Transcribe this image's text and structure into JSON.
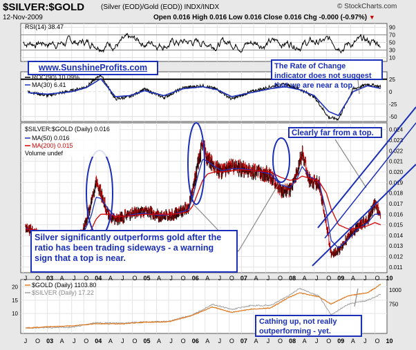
{
  "header": {
    "title": "$SILVER:$GOLD",
    "subtitle": "(Silver (EOD)/Gold (EOD))  INDX/INDX",
    "watermark": "© StockCharts.com",
    "date": "12-Nov-2009",
    "quote": "Open 0.016  High 0.016  Low 0.016  Close 0.016  Chg -0.000 (-0.97%)"
  },
  "site_label": "www.SunshineProfits.com",
  "annotations": {
    "roc_note": "The Rate of Change indicator does not suggest that we are near a top.",
    "top_note": "Clearly far from a top.",
    "silver_note": "Silver significantly outperforms gold after the ratio has been trading sideways -  a warning sign that a top is near.",
    "catch_note": "Cathing up, not really outperforming - yet."
  },
  "chart_data": [
    {
      "type": "line",
      "panel": "rsi",
      "legend": [
        "RSI(14) 38.47"
      ],
      "y_ticks": [
        10,
        30,
        50,
        70,
        90
      ],
      "ylim": [
        0,
        100
      ],
      "reference_lines": [
        30,
        70
      ]
    },
    {
      "type": "line",
      "panel": "roc",
      "legend": [
        "ROC(90) 10.09%",
        "MA(30) 6.41"
      ],
      "y_ticks": [
        -50,
        -25,
        0,
        25
      ],
      "ylim": [
        -60,
        40
      ],
      "reference_lines": [
        25
      ],
      "x": [
        2002.6,
        2003.0,
        2003.5,
        2003.8,
        2004.1,
        2004.4,
        2004.7,
        2005.0,
        2005.4,
        2005.8,
        2006.2,
        2006.5,
        2006.8,
        2007.2,
        2007.6,
        2007.9,
        2008.2,
        2008.5,
        2008.8,
        2009.0,
        2009.3,
        2009.6,
        2009.87
      ],
      "series": [
        {
          "name": "ROC(90) 10.09%",
          "values": [
            0,
            -8,
            2,
            10,
            34,
            -15,
            -10,
            5,
            -12,
            8,
            12,
            5,
            -15,
            0,
            10,
            15,
            5,
            -10,
            -52,
            -55,
            5,
            15,
            10.09
          ]
        },
        {
          "name": "MA(30) 6.41",
          "values": [
            -2,
            -5,
            0,
            8,
            26,
            -10,
            -8,
            2,
            -8,
            6,
            10,
            4,
            -10,
            -2,
            6,
            10,
            4,
            -8,
            -40,
            -48,
            0,
            12,
            6.41
          ]
        }
      ]
    },
    {
      "type": "line",
      "panel": "price",
      "legend": [
        "$SILVER:$GOLD (Daily) 0.016",
        "MA(50) 0.016",
        "MA(200) 0.015",
        "Volume undef"
      ],
      "y_ticks": [
        0.011,
        0.012,
        0.013,
        0.014,
        0.015,
        0.016,
        0.017,
        0.018,
        0.019,
        0.02,
        0.021,
        0.022,
        0.023,
        0.024
      ],
      "ylim": [
        0.0106,
        0.0245
      ],
      "x_ticks": [
        "J",
        "O",
        "03",
        "A",
        "J",
        "O",
        "04",
        "A",
        "J",
        "O",
        "05",
        "A",
        "J",
        "O",
        "06",
        "A",
        "J",
        "O",
        "07",
        "A",
        "J",
        "O",
        "08",
        "A",
        "J",
        "O",
        "09",
        "A",
        "J",
        "O",
        "10",
        "A"
      ],
      "x": [
        2002.55,
        2002.8,
        2003.0,
        2003.2,
        2003.45,
        2003.7,
        2003.9,
        2004.0,
        2004.1,
        2004.25,
        2004.4,
        2004.6,
        2004.8,
        2005.0,
        2005.3,
        2005.6,
        2005.9,
        2006.0,
        2006.1,
        2006.2,
        2006.3,
        2006.45,
        2006.6,
        2006.8,
        2007.0,
        2007.3,
        2007.6,
        2007.8,
        2008.0,
        2008.15,
        2008.25,
        2008.4,
        2008.6,
        2008.75,
        2008.85,
        2009.0,
        2009.2,
        2009.4,
        2009.6,
        2009.75,
        2009.87
      ],
      "series": [
        {
          "name": "$SILVER:$GOLD (Daily) 0.016",
          "values": [
            0.0148,
            0.014,
            0.0131,
            0.0127,
            0.0134,
            0.014,
            0.017,
            0.019,
            0.018,
            0.016,
            0.0155,
            0.0158,
            0.0162,
            0.0163,
            0.0158,
            0.016,
            0.0166,
            0.0184,
            0.0208,
            0.0225,
            0.0212,
            0.0205,
            0.02,
            0.0205,
            0.0203,
            0.02,
            0.0197,
            0.0182,
            0.0183,
            0.02,
            0.0218,
            0.0192,
            0.0189,
            0.015,
            0.0122,
            0.0125,
            0.014,
            0.0148,
            0.0155,
            0.017,
            0.016
          ]
        },
        {
          "name": "MA(50) 0.016",
          "values": [
            0.0147,
            0.0142,
            0.0135,
            0.013,
            0.0132,
            0.0138,
            0.0158,
            0.0176,
            0.0175,
            0.0165,
            0.0158,
            0.0158,
            0.016,
            0.0161,
            0.0159,
            0.016,
            0.0164,
            0.0176,
            0.0196,
            0.0212,
            0.021,
            0.0205,
            0.0201,
            0.0203,
            0.0203,
            0.0201,
            0.0198,
            0.0188,
            0.0185,
            0.0194,
            0.0205,
            0.0196,
            0.019,
            0.0162,
            0.0135,
            0.0128,
            0.0136,
            0.0146,
            0.0152,
            0.016,
            0.016
          ]
        },
        {
          "name": "MA(200) 0.015",
          "values": [
            0.0146,
            0.0145,
            0.0142,
            0.0138,
            0.0135,
            0.0136,
            0.0145,
            0.0155,
            0.016,
            0.016,
            0.0158,
            0.0158,
            0.0159,
            0.016,
            0.016,
            0.016,
            0.0162,
            0.0168,
            0.018,
            0.0192,
            0.0198,
            0.02,
            0.02,
            0.0201,
            0.0202,
            0.0201,
            0.02,
            0.0195,
            0.0192,
            0.0193,
            0.0196,
            0.0194,
            0.0191,
            0.018,
            0.0165,
            0.015,
            0.0146,
            0.0147,
            0.0149,
            0.0152,
            0.015
          ]
        }
      ]
    },
    {
      "type": "line",
      "panel": "gold_silver",
      "legend": [
        "$GOLD (Daily) 1103.80",
        "$SILVER (Daily) 17.22"
      ],
      "y_ticks_left": [
        10,
        15,
        20
      ],
      "y_ticks_right": [
        750,
        1000
      ],
      "x": [
        2002.55,
        2003.0,
        2003.5,
        2004.0,
        2004.5,
        2005.0,
        2005.5,
        2006.0,
        2006.4,
        2006.8,
        2007.2,
        2007.6,
        2008.0,
        2008.2,
        2008.6,
        2008.85,
        2009.2,
        2009.6,
        2009.87
      ],
      "series": [
        {
          "name": "$GOLD (Daily) 1103.80",
          "values": [
            320,
            345,
            360,
            400,
            395,
            425,
            435,
            550,
            700,
            600,
            660,
            680,
            880,
            950,
            880,
            750,
            900,
            950,
            1103.8
          ]
        },
        {
          "name": "$SILVER (Daily) 17.22",
          "values": [
            4.6,
            4.7,
            4.8,
            6.5,
            6.3,
            6.8,
            7.0,
            9.5,
            13.5,
            11.5,
            13.0,
            13.0,
            17.0,
            19.5,
            16.5,
            9.5,
            13.5,
            15.0,
            17.22
          ]
        }
      ]
    }
  ],
  "x_axis_labels": [
    "J",
    "O",
    "03",
    "A",
    "J",
    "O",
    "04",
    "A",
    "J",
    "O",
    "05",
    "A",
    "J",
    "O",
    "06",
    "A",
    "J",
    "O",
    "07",
    "A",
    "J",
    "O",
    "08",
    "A",
    "J",
    "O",
    "09",
    "A",
    "J",
    "O",
    "10"
  ]
}
